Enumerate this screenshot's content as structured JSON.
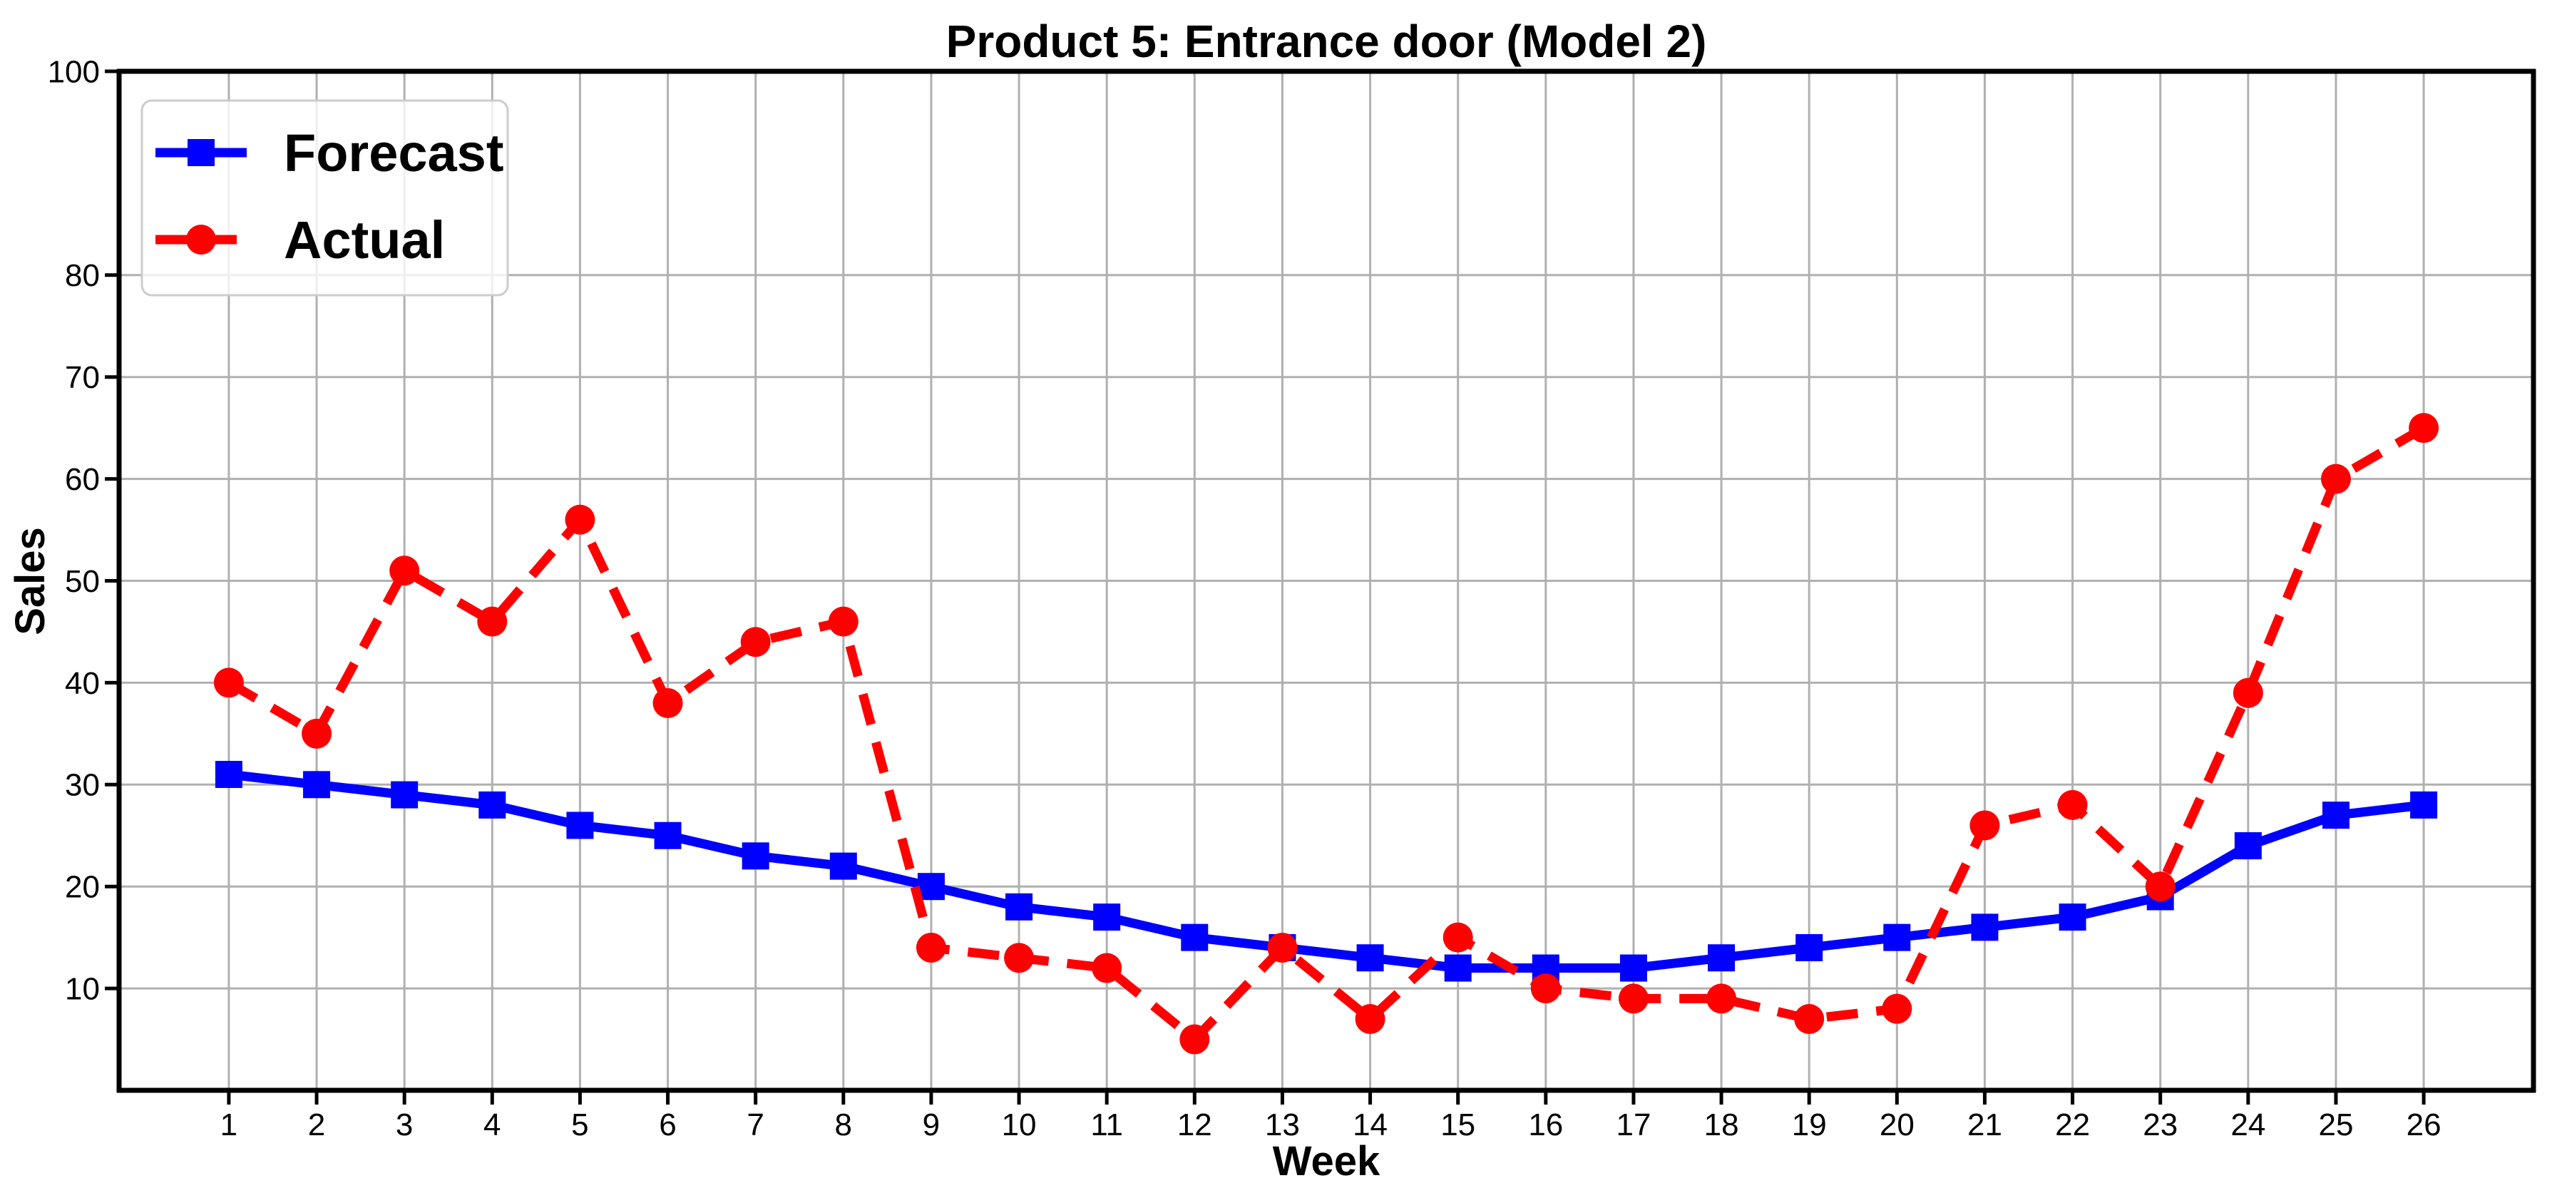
{
  "title": "Product 5: Entrance door (Model 2)",
  "xlabel": "Week",
  "ylabel": "Sales",
  "legend": {
    "items": [
      {
        "label": "Forecast",
        "color": "#0000ff",
        "linestyle": "solid",
        "marker": "square"
      },
      {
        "label": "Actual",
        "color": "#ff0000",
        "linestyle": "dashed",
        "marker": "circle"
      }
    ],
    "position": "upper left"
  },
  "colors": {
    "forecast": "#0000ff",
    "actual": "#ff0000",
    "grid": "#b0b0b0",
    "spine": "#000000",
    "legend_border": "#cccccc",
    "background": "#ffffff"
  },
  "chart_data": {
    "type": "line",
    "x": [
      1,
      2,
      3,
      4,
      5,
      6,
      7,
      8,
      9,
      10,
      11,
      12,
      13,
      14,
      15,
      16,
      17,
      18,
      19,
      20,
      21,
      22,
      23,
      24,
      25,
      26
    ],
    "series": [
      {
        "name": "Forecast",
        "color": "#0000ff",
        "linestyle": "solid",
        "marker": "square",
        "values": [
          31,
          30,
          29,
          28,
          26,
          25,
          23,
          22,
          20,
          18,
          17,
          15,
          14,
          13,
          12,
          12,
          12,
          13,
          14,
          15,
          16,
          17,
          19,
          24,
          27,
          28
        ]
      },
      {
        "name": "Actual",
        "color": "#ff0000",
        "linestyle": "dashed",
        "marker": "circle",
        "values": [
          40,
          35,
          51,
          46,
          56,
          38,
          44,
          46,
          14,
          13,
          12,
          5,
          14,
          7,
          15,
          10,
          9,
          9,
          7,
          8,
          26,
          28,
          20,
          39,
          60,
          65
        ]
      }
    ],
    "title": "Product 5: Entrance door (Model 2)",
    "xlabel": "Week",
    "ylabel": "Sales",
    "xlim": [
      -0.25,
      27.25
    ],
    "ylim": [
      0,
      100
    ],
    "xticks": [
      1,
      2,
      3,
      4,
      5,
      6,
      7,
      8,
      9,
      10,
      11,
      12,
      13,
      14,
      15,
      16,
      17,
      18,
      19,
      20,
      21,
      22,
      23,
      24,
      25,
      26
    ],
    "yticks": [
      10,
      20,
      30,
      40,
      50,
      60,
      70,
      80,
      100
    ],
    "grid": true,
    "legend_position": "upper left"
  }
}
